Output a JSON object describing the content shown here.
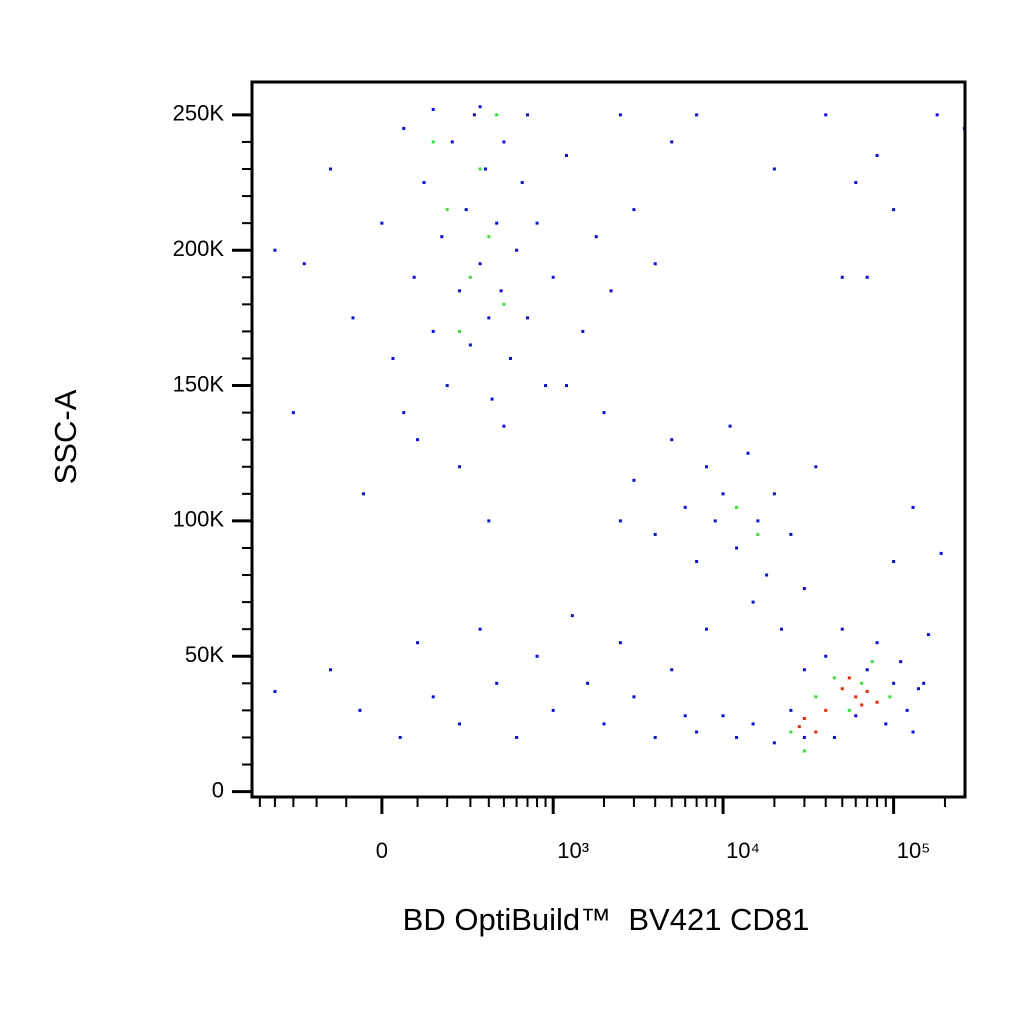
{
  "chart_data": {
    "type": "scatter",
    "xlabel": "BD OptiBuild™  BV421 CD81",
    "ylabel": "SSC-A",
    "xscale": "biexponential",
    "xlim": [
      -560,
      262144
    ],
    "ylim": [
      -2000,
      262144
    ],
    "xticks": [
      0,
      {
        "value": 1000,
        "label": "10³"
      },
      {
        "value": 10000,
        "label": "10⁴"
      },
      {
        "value": 100000,
        "label": "10⁵"
      }
    ],
    "xminor": [
      -500,
      -400,
      -300,
      -200,
      -100,
      100,
      200,
      300,
      400,
      500,
      600,
      700,
      800,
      900,
      2000,
      3000,
      4000,
      5000,
      6000,
      7000,
      8000,
      9000,
      20000,
      30000,
      40000,
      50000,
      60000,
      70000,
      80000,
      90000,
      200000
    ],
    "yticks": [
      0,
      {
        "value": 50000,
        "label": "50K"
      },
      {
        "value": 100000,
        "label": "100K"
      },
      {
        "value": 150000,
        "label": "150K"
      },
      {
        "value": 200000,
        "label": "200K"
      },
      {
        "value": 250000,
        "label": "250K"
      }
    ],
    "yminor": [
      10000,
      20000,
      30000,
      40000,
      60000,
      70000,
      80000,
      90000,
      110000,
      120000,
      130000,
      140000,
      160000,
      170000,
      180000,
      190000,
      210000,
      220000,
      230000,
      240000
    ],
    "series": [
      {
        "color": "#0a0af5",
        "x": [
          -250,
          -150,
          -80,
          0,
          30,
          60,
          90,
          120,
          150,
          180,
          200,
          220,
          250,
          280,
          300,
          320,
          350,
          380,
          400,
          420,
          450,
          480,
          500,
          550,
          600,
          650,
          700,
          800,
          900,
          1000,
          1200,
          1500,
          1800,
          2200,
          2500,
          3000,
          4000,
          5000,
          7000,
          -400,
          -300,
          100,
          250,
          500,
          700,
          150,
          350,
          60,
          -50,
          1200,
          2000,
          400,
          3000,
          4000,
          5000,
          6000,
          7000,
          8000,
          9000,
          10000,
          12000,
          14000,
          16000,
          18000,
          20000,
          25000,
          30000,
          35000,
          2500,
          11000,
          15000,
          22000,
          -400,
          -150,
          -60,
          50,
          100,
          150,
          250,
          350,
          450,
          600,
          800,
          1000,
          1300,
          1600,
          2000,
          2500,
          3000,
          4000,
          5000,
          6000,
          7000,
          8000,
          30000,
          150000,
          100000,
          130000,
          190000,
          160000,
          40000,
          60000,
          80000,
          100000,
          50000,
          20000,
          70000,
          180000,
          260000,
          15000,
          20000,
          25000,
          30000,
          40000,
          45000,
          50000,
          60000,
          70000,
          80000,
          90000,
          100000,
          110000,
          120000,
          130000,
          10000,
          12000,
          140000
        ],
        "y": [
          195000,
          230000,
          175000,
          210000,
          160000,
          245000,
          190000,
          225000,
          170000,
          205000,
          150000,
          240000,
          185000,
          215000,
          165000,
          250000,
          195000,
          230000,
          175000,
          145000,
          210000,
          185000,
          240000,
          160000,
          200000,
          225000,
          175000,
          210000,
          150000,
          190000,
          235000,
          170000,
          205000,
          185000,
          250000,
          215000,
          195000,
          240000,
          250000,
          200000,
          140000,
          130000,
          120000,
          135000,
          250000,
          252000,
          253000,
          140000,
          110000,
          150000,
          140000,
          100000,
          115000,
          95000,
          130000,
          105000,
          85000,
          120000,
          100000,
          110000,
          90000,
          125000,
          100000,
          80000,
          110000,
          95000,
          75000,
          120000,
          100000,
          135000,
          70000,
          60000,
          37000,
          45000,
          30000,
          20000,
          55000,
          35000,
          25000,
          60000,
          40000,
          20000,
          50000,
          30000,
          65000,
          40000,
          25000,
          55000,
          35000,
          20000,
          45000,
          28000,
          22000,
          60000,
          20000,
          40000,
          85000,
          105000,
          88000,
          58000,
          250000,
          225000,
          235000,
          215000,
          190000,
          230000,
          190000,
          250000,
          245000,
          25000,
          18000,
          30000,
          45000,
          50000,
          20000,
          60000,
          28000,
          45000,
          55000,
          25000,
          40000,
          48000,
          30000,
          22000,
          28000,
          20000,
          38000
        ]
      },
      {
        "color": "#2de82d",
        "x": [
          200,
          300,
          350,
          400,
          250,
          450,
          150,
          500,
          12000,
          16000,
          25000,
          35000,
          45000,
          55000,
          75000,
          95000,
          30000,
          65000
        ],
        "y": [
          215000,
          190000,
          230000,
          205000,
          170000,
          250000,
          240000,
          180000,
          105000,
          95000,
          22000,
          35000,
          42000,
          30000,
          48000,
          35000,
          15000,
          40000
        ]
      },
      {
        "color": "#ff2200",
        "x": [
          30000,
          35000,
          40000,
          50000,
          60000,
          70000,
          80000,
          55000,
          65000,
          28000
        ],
        "y": [
          27000,
          22000,
          30000,
          38000,
          35000,
          37000,
          33000,
          42000,
          32000,
          24000
        ]
      }
    ]
  }
}
